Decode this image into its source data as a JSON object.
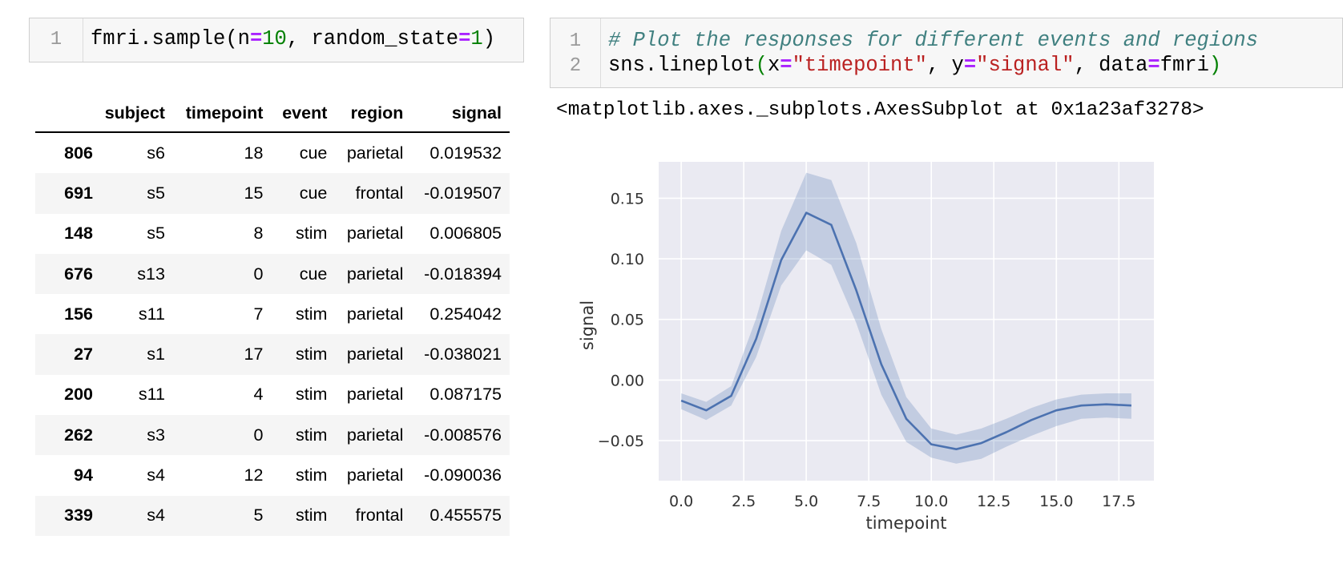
{
  "left_cell": {
    "line_number": "1",
    "code_tokens": [
      {
        "t": "fmri.sample(n",
        "c": ""
      },
      {
        "t": "=",
        "c": "kw"
      },
      {
        "t": "10",
        "c": "num"
      },
      {
        "t": ", random_state",
        "c": ""
      },
      {
        "t": "=",
        "c": "kw"
      },
      {
        "t": "1",
        "c": "num"
      },
      {
        "t": ")",
        "c": ""
      }
    ]
  },
  "dataframe": {
    "columns": [
      "",
      "subject",
      "timepoint",
      "event",
      "region",
      "signal"
    ],
    "rows": [
      [
        "806",
        "s6",
        "18",
        "cue",
        "parietal",
        "0.019532"
      ],
      [
        "691",
        "s5",
        "15",
        "cue",
        "frontal",
        "-0.019507"
      ],
      [
        "148",
        "s5",
        "8",
        "stim",
        "parietal",
        "0.006805"
      ],
      [
        "676",
        "s13",
        "0",
        "cue",
        "parietal",
        "-0.018394"
      ],
      [
        "156",
        "s11",
        "7",
        "stim",
        "parietal",
        "0.254042"
      ],
      [
        "27",
        "s1",
        "17",
        "stim",
        "parietal",
        "-0.038021"
      ],
      [
        "200",
        "s11",
        "4",
        "stim",
        "parietal",
        "0.087175"
      ],
      [
        "262",
        "s3",
        "0",
        "stim",
        "parietal",
        "-0.008576"
      ],
      [
        "94",
        "s4",
        "12",
        "stim",
        "parietal",
        "-0.090036"
      ],
      [
        "339",
        "s4",
        "5",
        "stim",
        "frontal",
        "0.455575"
      ]
    ]
  },
  "right_cell": {
    "lines": [
      {
        "number": "1",
        "tokens": [
          {
            "t": "# Plot the responses for different events and regions",
            "c": "cmt"
          }
        ]
      },
      {
        "number": "2",
        "tokens": [
          {
            "t": "sns.lineplot",
            "c": ""
          },
          {
            "t": "(",
            "c": "par"
          },
          {
            "t": "x",
            "c": ""
          },
          {
            "t": "=",
            "c": "kw"
          },
          {
            "t": "\"timepoint\"",
            "c": "str"
          },
          {
            "t": ", y",
            "c": ""
          },
          {
            "t": "=",
            "c": "kw"
          },
          {
            "t": "\"signal\"",
            "c": "str"
          },
          {
            "t": ", data",
            "c": ""
          },
          {
            "t": "=",
            "c": "kw"
          },
          {
            "t": "fmri",
            "c": ""
          },
          {
            "t": ")",
            "c": "par"
          }
        ]
      }
    ]
  },
  "output_text": "<matplotlib.axes._subplots.AxesSubplot at 0x1a23af3278>",
  "chart_data": {
    "type": "line",
    "xlabel": "timepoint",
    "ylabel": "signal",
    "xlim": [
      -0.9,
      18.9
    ],
    "ylim": [
      -0.083,
      0.18
    ],
    "xticks": [
      0.0,
      2.5,
      5.0,
      7.5,
      10.0,
      12.5,
      15.0,
      17.5
    ],
    "xtick_labels": [
      "0.0",
      "2.5",
      "5.0",
      "7.5",
      "10.0",
      "12.5",
      "15.0",
      "17.5"
    ],
    "yticks": [
      -0.05,
      0.0,
      0.05,
      0.1,
      0.15
    ],
    "ytick_labels": [
      "−0.05",
      "0.00",
      "0.05",
      "0.10",
      "0.15"
    ],
    "grid": true,
    "series": [
      {
        "x": [
          0,
          1,
          2,
          3,
          4,
          5,
          6,
          7,
          8,
          9,
          10,
          11,
          12,
          13,
          14,
          15,
          16,
          17,
          18
        ],
        "y": [
          -0.017,
          -0.025,
          -0.013,
          0.034,
          0.099,
          0.138,
          0.128,
          0.074,
          0.013,
          -0.032,
          -0.053,
          -0.057,
          -0.052,
          -0.043,
          -0.033,
          -0.025,
          -0.021,
          -0.02,
          -0.021
        ],
        "ci_low": [
          -0.024,
          -0.033,
          -0.021,
          0.019,
          0.078,
          0.107,
          0.095,
          0.047,
          -0.012,
          -0.051,
          -0.064,
          -0.069,
          -0.065,
          -0.055,
          -0.046,
          -0.038,
          -0.032,
          -0.031,
          -0.032
        ],
        "ci_high": [
          -0.011,
          -0.018,
          -0.005,
          0.051,
          0.123,
          0.171,
          0.165,
          0.113,
          0.042,
          -0.014,
          -0.04,
          -0.045,
          -0.04,
          -0.032,
          -0.023,
          -0.016,
          -0.012,
          -0.011,
          -0.011
        ]
      }
    ],
    "colors": {
      "line": "#4c72b0",
      "band": "#4c72b0",
      "plot_bg": "#eaeaf2",
      "grid": "#ffffff"
    }
  }
}
